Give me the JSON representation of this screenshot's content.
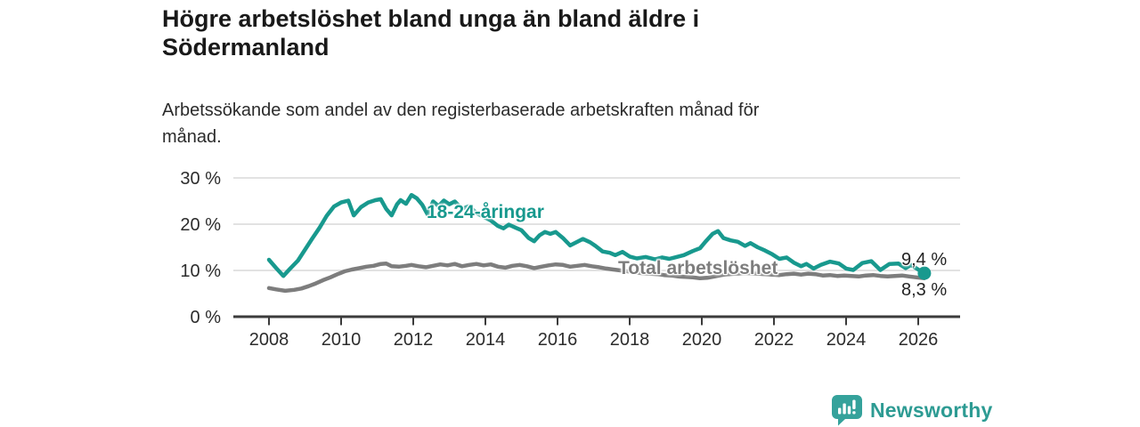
{
  "header": {
    "title": "Högre arbetslöshet bland unga än bland äldre i\nSödermanland",
    "subtitle": "Arbetssökande som andel av den registerbaserade arbetskraften månad för\nmånad."
  },
  "theme": {
    "accent_teal": "#18998e",
    "line_gray": "#7d7d7d",
    "grid_color": "#d9d9d9",
    "axis_color": "#3b3b3b",
    "tick_text_color": "#2c2c2c",
    "brand_teal": "#2d9b93"
  },
  "footer": {
    "brand": "Newsworthy",
    "brand_icon": "bar-chart-speech-bubble"
  },
  "chart_data": {
    "type": "line",
    "title": "Högre arbetslöshet bland unga än bland äldre i Södermanland",
    "subtitle": "Arbetssökande som andel av den registerbaserade arbetskraften månad för månad.",
    "grid": "horizontal",
    "legend": "inline-labels",
    "x_axis": {
      "tick_values": [
        2008,
        2010,
        2012,
        2014,
        2016,
        2018,
        2020,
        2022,
        2024,
        2026
      ],
      "tick_labels": [
        "2008",
        "2010",
        "2012",
        "2014",
        "2016",
        "2018",
        "2020",
        "2022",
        "2024",
        "2026"
      ],
      "range": [
        2007.05,
        2027.15
      ]
    },
    "y_axis": {
      "unit": "%",
      "tick_values": [
        0,
        10,
        20,
        30
      ],
      "tick_labels": [
        "0 %",
        "10 %",
        "20 %",
        "30 %"
      ],
      "range": [
        0,
        33
      ]
    },
    "series": [
      {
        "name": "18-24-åringar",
        "color": "#18998e",
        "end_label": "9,4 %",
        "end_value": 9.4,
        "end_dot": true,
        "points": [
          [
            2008.0,
            12.3
          ],
          [
            2008.2,
            10.5
          ],
          [
            2008.4,
            8.8
          ],
          [
            2008.6,
            10.5
          ],
          [
            2008.8,
            12.1
          ],
          [
            2009.0,
            14.5
          ],
          [
            2009.2,
            16.9
          ],
          [
            2009.4,
            19.2
          ],
          [
            2009.6,
            21.8
          ],
          [
            2009.8,
            23.8
          ],
          [
            2010.0,
            24.7
          ],
          [
            2010.2,
            25.1
          ],
          [
            2010.35,
            21.9
          ],
          [
            2010.55,
            23.7
          ],
          [
            2010.75,
            24.7
          ],
          [
            2010.95,
            25.2
          ],
          [
            2011.1,
            25.4
          ],
          [
            2011.25,
            23.3
          ],
          [
            2011.4,
            21.9
          ],
          [
            2011.55,
            24.3
          ],
          [
            2011.65,
            25.2
          ],
          [
            2011.8,
            24.4
          ],
          [
            2011.95,
            26.3
          ],
          [
            2012.1,
            25.6
          ],
          [
            2012.25,
            24.2
          ],
          [
            2012.4,
            22.1
          ],
          [
            2012.55,
            24.9
          ],
          [
            2012.7,
            23.9
          ],
          [
            2012.85,
            25.1
          ],
          [
            2013.0,
            24.3
          ],
          [
            2013.15,
            24.9
          ],
          [
            2013.35,
            23.3
          ],
          [
            2013.55,
            23.9
          ],
          [
            2013.75,
            22.4
          ],
          [
            2013.95,
            21.6
          ],
          [
            2014.15,
            20.8
          ],
          [
            2014.35,
            19.6
          ],
          [
            2014.5,
            19.1
          ],
          [
            2014.65,
            19.9
          ],
          [
            2014.85,
            19.2
          ],
          [
            2015.0,
            18.7
          ],
          [
            2015.2,
            17.0
          ],
          [
            2015.35,
            16.3
          ],
          [
            2015.5,
            17.6
          ],
          [
            2015.65,
            18.3
          ],
          [
            2015.8,
            17.9
          ],
          [
            2015.95,
            18.3
          ],
          [
            2016.15,
            17.0
          ],
          [
            2016.35,
            15.4
          ],
          [
            2016.55,
            16.2
          ],
          [
            2016.7,
            16.8
          ],
          [
            2016.9,
            16.1
          ],
          [
            2017.05,
            15.3
          ],
          [
            2017.25,
            14.1
          ],
          [
            2017.45,
            13.8
          ],
          [
            2017.6,
            13.3
          ],
          [
            2017.8,
            14.0
          ],
          [
            2018.0,
            13.0
          ],
          [
            2018.2,
            12.6
          ],
          [
            2018.45,
            12.9
          ],
          [
            2018.7,
            12.4
          ],
          [
            2018.9,
            12.8
          ],
          [
            2019.1,
            12.5
          ],
          [
            2019.3,
            12.9
          ],
          [
            2019.5,
            13.3
          ],
          [
            2019.75,
            14.2
          ],
          [
            2019.95,
            14.8
          ],
          [
            2020.1,
            16.2
          ],
          [
            2020.3,
            17.9
          ],
          [
            2020.45,
            18.5
          ],
          [
            2020.6,
            17.0
          ],
          [
            2020.8,
            16.5
          ],
          [
            2021.0,
            16.2
          ],
          [
            2021.2,
            15.3
          ],
          [
            2021.35,
            15.9
          ],
          [
            2021.55,
            15.0
          ],
          [
            2021.75,
            14.3
          ],
          [
            2021.95,
            13.5
          ],
          [
            2022.15,
            12.5
          ],
          [
            2022.35,
            12.8
          ],
          [
            2022.55,
            11.7
          ],
          [
            2022.75,
            10.9
          ],
          [
            2022.9,
            11.4
          ],
          [
            2023.1,
            10.4
          ],
          [
            2023.3,
            11.2
          ],
          [
            2023.55,
            11.9
          ],
          [
            2023.8,
            11.5
          ],
          [
            2024.0,
            10.4
          ],
          [
            2024.2,
            10.1
          ],
          [
            2024.45,
            11.6
          ],
          [
            2024.7,
            12.0
          ],
          [
            2024.95,
            10.1
          ],
          [
            2025.2,
            11.4
          ],
          [
            2025.45,
            11.5
          ],
          [
            2025.65,
            10.5
          ],
          [
            2025.8,
            11.2
          ],
          [
            2026.0,
            10.2
          ],
          [
            2026.17,
            9.4
          ]
        ]
      },
      {
        "name": "Total arbetslöshet",
        "color": "#7d7d7d",
        "end_label": "8,3 %",
        "end_value": 8.3,
        "end_dot": false,
        "points": [
          [
            2008.0,
            6.2
          ],
          [
            2008.2,
            5.9
          ],
          [
            2008.45,
            5.6
          ],
          [
            2008.7,
            5.8
          ],
          [
            2008.9,
            6.1
          ],
          [
            2009.1,
            6.6
          ],
          [
            2009.3,
            7.2
          ],
          [
            2009.5,
            7.9
          ],
          [
            2009.7,
            8.5
          ],
          [
            2009.9,
            9.2
          ],
          [
            2010.1,
            9.8
          ],
          [
            2010.3,
            10.2
          ],
          [
            2010.5,
            10.5
          ],
          [
            2010.7,
            10.8
          ],
          [
            2010.9,
            11.0
          ],
          [
            2011.1,
            11.4
          ],
          [
            2011.25,
            11.5
          ],
          [
            2011.4,
            10.9
          ],
          [
            2011.6,
            10.8
          ],
          [
            2011.8,
            11.0
          ],
          [
            2011.95,
            11.2
          ],
          [
            2012.15,
            10.9
          ],
          [
            2012.35,
            10.7
          ],
          [
            2012.55,
            11.0
          ],
          [
            2012.75,
            11.3
          ],
          [
            2012.95,
            11.1
          ],
          [
            2013.15,
            11.4
          ],
          [
            2013.35,
            10.9
          ],
          [
            2013.55,
            11.2
          ],
          [
            2013.75,
            11.4
          ],
          [
            2013.95,
            11.1
          ],
          [
            2014.15,
            11.3
          ],
          [
            2014.35,
            10.8
          ],
          [
            2014.55,
            10.6
          ],
          [
            2014.75,
            11.0
          ],
          [
            2014.95,
            11.2
          ],
          [
            2015.15,
            10.9
          ],
          [
            2015.35,
            10.5
          ],
          [
            2015.55,
            10.8
          ],
          [
            2015.75,
            11.1
          ],
          [
            2015.95,
            11.3
          ],
          [
            2016.15,
            11.2
          ],
          [
            2016.35,
            10.8
          ],
          [
            2016.55,
            11.0
          ],
          [
            2016.75,
            11.2
          ],
          [
            2016.95,
            10.9
          ],
          [
            2017.15,
            10.7
          ],
          [
            2017.35,
            10.4
          ],
          [
            2017.55,
            10.2
          ],
          [
            2017.75,
            10.0
          ],
          [
            2017.95,
            9.8
          ],
          [
            2018.15,
            9.6
          ],
          [
            2018.35,
            9.4
          ],
          [
            2018.55,
            9.3
          ],
          [
            2018.75,
            9.2
          ],
          [
            2018.95,
            9.0
          ],
          [
            2019.15,
            8.9
          ],
          [
            2019.35,
            8.7
          ],
          [
            2019.55,
            8.6
          ],
          [
            2019.75,
            8.5
          ],
          [
            2019.95,
            8.3
          ],
          [
            2020.15,
            8.4
          ],
          [
            2020.35,
            8.7
          ],
          [
            2020.55,
            9.0
          ],
          [
            2020.75,
            9.2
          ],
          [
            2020.95,
            9.3
          ],
          [
            2021.15,
            9.4
          ],
          [
            2021.35,
            9.4
          ],
          [
            2021.55,
            9.3
          ],
          [
            2021.75,
            9.2
          ],
          [
            2021.95,
            9.1
          ],
          [
            2022.15,
            9.0
          ],
          [
            2022.35,
            9.2
          ],
          [
            2022.55,
            9.3
          ],
          [
            2022.75,
            9.1
          ],
          [
            2022.95,
            9.3
          ],
          [
            2023.15,
            9.2
          ],
          [
            2023.35,
            8.9
          ],
          [
            2023.55,
            9.0
          ],
          [
            2023.75,
            8.8
          ],
          [
            2023.95,
            8.9
          ],
          [
            2024.15,
            8.8
          ],
          [
            2024.35,
            8.7
          ],
          [
            2024.55,
            8.9
          ],
          [
            2024.75,
            9.0
          ],
          [
            2024.95,
            8.8
          ],
          [
            2025.15,
            8.7
          ],
          [
            2025.35,
            8.8
          ],
          [
            2025.55,
            8.9
          ],
          [
            2025.75,
            8.7
          ],
          [
            2025.95,
            8.5
          ],
          [
            2026.17,
            8.3
          ]
        ]
      }
    ]
  }
}
